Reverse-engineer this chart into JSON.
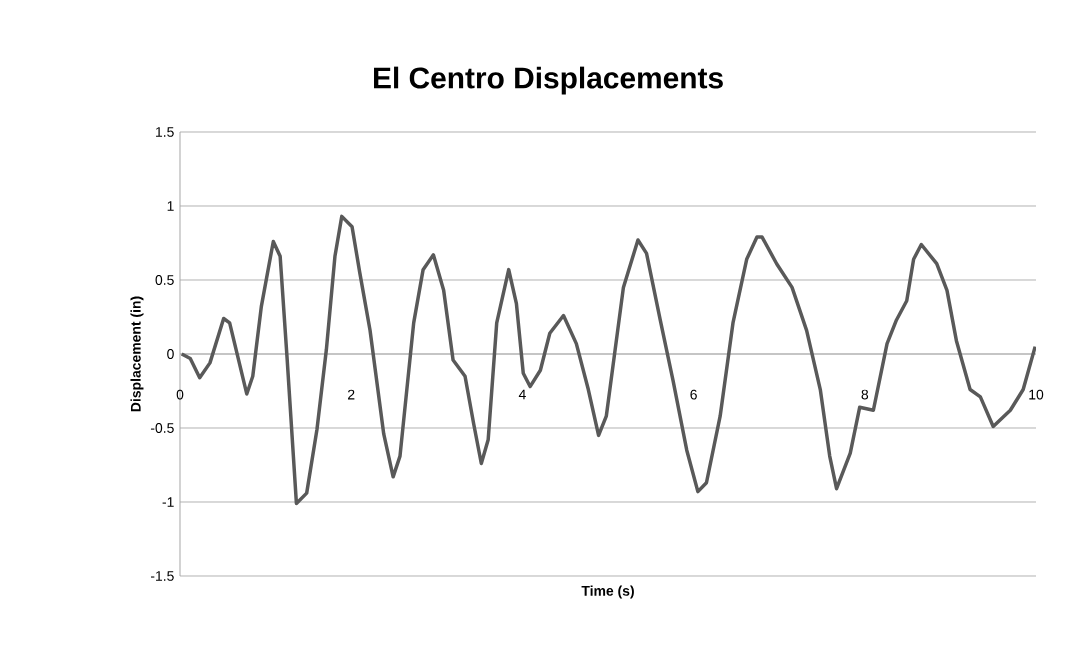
{
  "chart_data": {
    "type": "line",
    "title": "El Centro Displacements",
    "xlabel": "Time (s)",
    "ylabel": "Displacement  (in)",
    "x": [
      0.02,
      0.12,
      0.23,
      0.35,
      0.51,
      0.58,
      0.78,
      0.85,
      0.95,
      1.09,
      1.17,
      1.25,
      1.36,
      1.48,
      1.6,
      1.71,
      1.81,
      1.89,
      2.01,
      2.1,
      2.22,
      2.38,
      2.49,
      2.57,
      2.73,
      2.84,
      2.96,
      3.08,
      3.19,
      3.33,
      3.43,
      3.52,
      3.6,
      3.7,
      3.84,
      3.93,
      4.01,
      4.09,
      4.21,
      4.32,
      4.48,
      4.63,
      4.77,
      4.89,
      4.98,
      5.18,
      5.35,
      5.45,
      5.61,
      5.76,
      5.92,
      6.05,
      6.15,
      6.31,
      6.46,
      6.62,
      6.74,
      6.8,
      6.97,
      7.15,
      7.32,
      7.48,
      7.59,
      7.67,
      7.83,
      7.94,
      8.1,
      8.26,
      8.37,
      8.49,
      8.57,
      8.66,
      8.84,
      8.96,
      9.07,
      9.23,
      9.35,
      9.5,
      9.7,
      9.85,
      9.99
    ],
    "values": [
      0.0,
      -0.03,
      -0.16,
      -0.06,
      0.24,
      0.21,
      -0.27,
      -0.15,
      0.32,
      0.76,
      0.66,
      -0.02,
      -1.01,
      -0.94,
      -0.51,
      0.03,
      0.66,
      0.93,
      0.86,
      0.55,
      0.16,
      -0.54,
      -0.83,
      -0.69,
      0.21,
      0.57,
      0.67,
      0.43,
      -0.04,
      -0.15,
      -0.47,
      -0.74,
      -0.58,
      0.21,
      0.57,
      0.34,
      -0.13,
      -0.22,
      -0.11,
      0.14,
      0.26,
      0.07,
      -0.24,
      -0.55,
      -0.42,
      0.45,
      0.77,
      0.68,
      0.23,
      -0.18,
      -0.65,
      -0.93,
      -0.87,
      -0.42,
      0.21,
      0.64,
      0.79,
      0.79,
      0.61,
      0.45,
      0.16,
      -0.24,
      -0.69,
      -0.91,
      -0.67,
      -0.36,
      -0.38,
      0.07,
      0.23,
      0.36,
      0.64,
      0.74,
      0.61,
      0.43,
      0.09,
      -0.24,
      -0.29,
      -0.49,
      -0.38,
      -0.24,
      0.05
    ],
    "color": "#595959",
    "xlim": [
      0,
      10
    ],
    "ylim": [
      -1.5,
      1.5
    ],
    "xticks": [
      0,
      2,
      4,
      6,
      8,
      10
    ],
    "yticks": [
      -1.5,
      -1,
      -0.5,
      0,
      0.5,
      1,
      1.5
    ],
    "grid": "y",
    "marker": "none",
    "line_style": "solid"
  }
}
